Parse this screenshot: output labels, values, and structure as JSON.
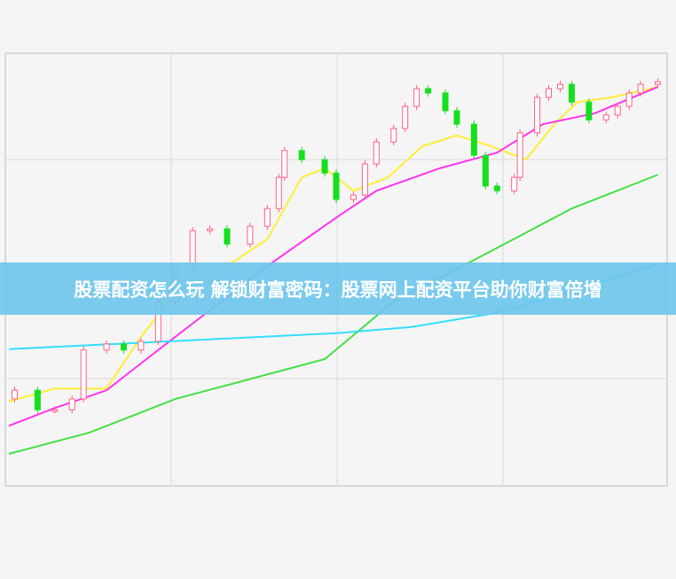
{
  "banner": {
    "title": "股票配资怎么玩 解锁财富密码：股票网上配资平台助你财富倍增"
  },
  "chart_data": {
    "type": "candlestick",
    "title": "",
    "xlabel": "",
    "ylabel": "",
    "xlim": [
      0,
      114
    ],
    "ylim": [
      0,
      100
    ],
    "grid": true,
    "colors": {
      "up": "#ff5f86",
      "down": "#14e01e",
      "background": "#f5f5f5",
      "grid": "#d9d9d9"
    },
    "candles": [
      {
        "x": 1,
        "close": 22.1
      },
      {
        "x": 5,
        "close": 17.6
      },
      {
        "x": 8,
        "close": 17.6
      },
      {
        "x": 11,
        "close": 20.1
      },
      {
        "x": 13,
        "close": 31.4
      },
      {
        "x": 17,
        "close": 32.8
      },
      {
        "x": 20,
        "close": 31.4
      },
      {
        "x": 23,
        "close": 33.4
      },
      {
        "x": 26,
        "close": 42.6
      },
      {
        "x": 29,
        "close": 50.8
      },
      {
        "x": 32,
        "close": 59.0
      },
      {
        "x": 35,
        "close": 59.4
      },
      {
        "x": 38,
        "close": 55.9
      },
      {
        "x": 42,
        "close": 60.0
      },
      {
        "x": 45,
        "close": 64.1
      },
      {
        "x": 47,
        "close": 71.3
      },
      {
        "x": 48,
        "close": 77.5
      },
      {
        "x": 51,
        "close": 75.4
      },
      {
        "x": 55,
        "close": 72.3
      },
      {
        "x": 57,
        "close": 66.2
      },
      {
        "x": 60,
        "close": 67.2
      },
      {
        "x": 62,
        "close": 74.4
      },
      {
        "x": 64,
        "close": 79.5
      },
      {
        "x": 67,
        "close": 82.6
      },
      {
        "x": 69,
        "close": 87.7
      },
      {
        "x": 71,
        "close": 91.8
      },
      {
        "x": 73,
        "close": 90.8
      },
      {
        "x": 76,
        "close": 86.7
      },
      {
        "x": 78,
        "close": 83.6
      },
      {
        "x": 81,
        "close": 76.4
      },
      {
        "x": 83,
        "close": 69.3
      },
      {
        "x": 85,
        "close": 68.2
      },
      {
        "x": 88,
        "close": 71.3
      },
      {
        "x": 89,
        "close": 81.6
      },
      {
        "x": 92,
        "close": 89.8
      },
      {
        "x": 94,
        "close": 91.8
      },
      {
        "x": 96,
        "close": 92.8
      },
      {
        "x": 98,
        "close": 88.7
      },
      {
        "x": 101,
        "close": 84.6
      },
      {
        "x": 104,
        "close": 85.7
      },
      {
        "x": 106,
        "close": 87.7
      },
      {
        "x": 108,
        "close": 90.8
      },
      {
        "x": 110,
        "close": 92.8
      },
      {
        "x": 113,
        "close": 93.4
      }
    ],
    "series": [
      {
        "color": "#ffee33",
        "points": [
          [
            0,
            19.5
          ],
          [
            8,
            22.5
          ],
          [
            17,
            22.5
          ],
          [
            23,
            34.4
          ],
          [
            29,
            44.7
          ],
          [
            38,
            50.8
          ],
          [
            45,
            57.0
          ],
          [
            51,
            71.3
          ],
          [
            55,
            73.4
          ],
          [
            60,
            68.2
          ],
          [
            66,
            71.3
          ],
          [
            72,
            78.5
          ],
          [
            78,
            81.0
          ],
          [
            84,
            78.5
          ],
          [
            90,
            75.4
          ],
          [
            95,
            83.6
          ],
          [
            99,
            88.7
          ],
          [
            105,
            89.8
          ],
          [
            113,
            92.2
          ]
        ]
      },
      {
        "color": "#ff33ee",
        "points": [
          [
            0,
            13.9
          ],
          [
            8,
            18.0
          ],
          [
            17,
            22.1
          ],
          [
            26,
            31.4
          ],
          [
            35,
            40.6
          ],
          [
            45,
            50.8
          ],
          [
            57,
            62.0
          ],
          [
            64,
            68.2
          ],
          [
            75,
            73.4
          ],
          [
            85,
            77.0
          ],
          [
            93,
            83.6
          ],
          [
            102,
            86.1
          ],
          [
            113,
            92.2
          ]
        ]
      },
      {
        "color": "#44e044",
        "points": [
          [
            0,
            7.4
          ],
          [
            14,
            12.3
          ],
          [
            29,
            20.1
          ],
          [
            55,
            29.3
          ],
          [
            67,
            42.6
          ],
          [
            82,
            52.9
          ],
          [
            98,
            64.1
          ],
          [
            113,
            71.9
          ]
        ]
      },
      {
        "color": "#33ddff",
        "points": [
          [
            0,
            31.6
          ],
          [
            57,
            35.3
          ],
          [
            70,
            36.7
          ],
          [
            84,
            39.8
          ],
          [
            98,
            44.9
          ],
          [
            113,
            51.2
          ]
        ]
      }
    ]
  }
}
